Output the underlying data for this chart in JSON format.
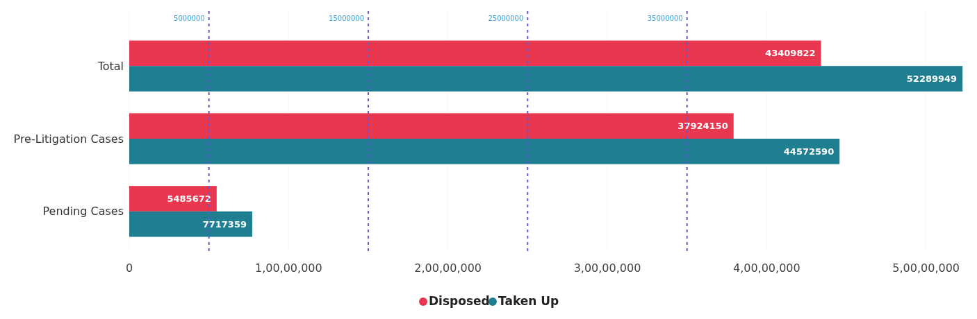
{
  "chart_data": {
    "type": "bar",
    "orientation": "horizontal",
    "categories": [
      "Total",
      "Pre-Litigation Cases",
      "Pending Cases"
    ],
    "series": [
      {
        "name": "Disposed",
        "color": "#e8374e",
        "values": [
          43409822,
          37924150,
          5485672
        ]
      },
      {
        "name": "Taken Up",
        "color": "#1f7f91",
        "values": [
          52289949,
          44572590,
          7717359
        ]
      }
    ],
    "xlim": [
      0,
      52500000
    ],
    "xticks": [
      0,
      {
        "value": 10000000,
        "label": "1,00,00,000"
      },
      {
        "value": 20000000,
        "label": "2,00,00,000"
      },
      {
        "value": 30000000,
        "label": "3,00,00,000"
      },
      {
        "value": 40000000,
        "label": "4,00,00,000"
      },
      {
        "value": 50000000,
        "label": "5,00,00,000"
      }
    ],
    "ref_lines": [
      {
        "axis": "x",
        "value": 5000000,
        "label": "5000000",
        "color": "#5b5bd6",
        "line_style": "dashed"
      },
      {
        "axis": "x",
        "value": 15000000,
        "label": "15000000",
        "color": "#5b5bd6",
        "line_style": "dashed"
      },
      {
        "axis": "x",
        "value": 25000000,
        "label": "25000000",
        "color": "#5b5bd6",
        "line_style": "dashed"
      },
      {
        "axis": "x",
        "value": 35000000,
        "label": "35000000",
        "color": "#5b5bd6",
        "line_style": "dashed"
      }
    ],
    "data_labels": true,
    "grid": "x",
    "legend": "bottom"
  }
}
